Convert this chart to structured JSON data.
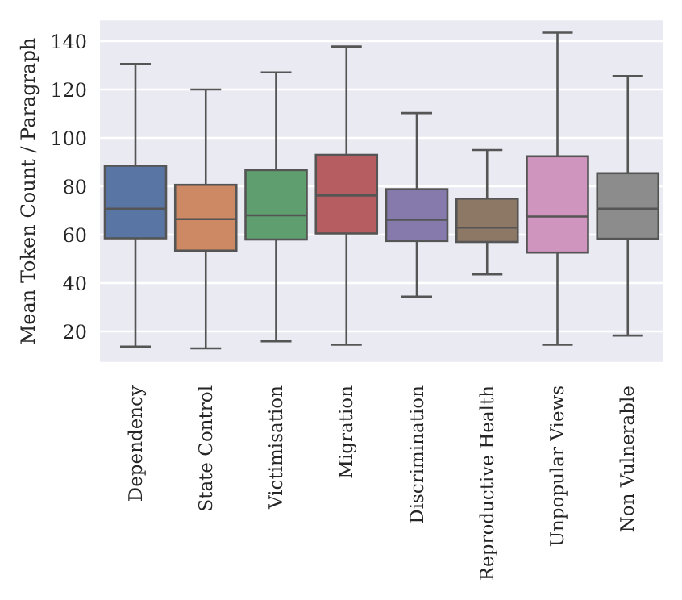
{
  "chart_data": {
    "type": "box",
    "ylabel": "Mean Token Count / Paragraph",
    "categories": [
      "Dependency",
      "State Control",
      "Victimisation",
      "Migration",
      "Discrimination",
      "Reproductive Health",
      "Unpopular Views",
      "Non Vulnerable"
    ],
    "colors": [
      "#5875a4",
      "#cc8963",
      "#5f9e6e",
      "#b55d60",
      "#857aab",
      "#8d7866",
      "#d095bf",
      "#8c8c8c"
    ],
    "boxes": [
      {
        "low": 13.7,
        "q1": 58.5,
        "median": 70.7,
        "q3": 88.5,
        "high": 130.6
      },
      {
        "low": 13,
        "q1": 53.4,
        "median": 66.4,
        "q3": 80.6,
        "high": 120
      },
      {
        "low": 15.9,
        "q1": 58,
        "median": 68,
        "q3": 86.7,
        "high": 127.1
      },
      {
        "low": 14.5,
        "q1": 60.5,
        "median": 76.2,
        "q3": 93,
        "high": 137.8
      },
      {
        "low": 34.4,
        "q1": 57.4,
        "median": 66.2,
        "q3": 78.8,
        "high": 110.3
      },
      {
        "low": 43.6,
        "q1": 57,
        "median": 62.9,
        "q3": 74.9,
        "high": 95
      },
      {
        "low": 14.5,
        "q1": 52.6,
        "median": 67.5,
        "q3": 92.4,
        "high": 143.5
      },
      {
        "low": 18.3,
        "q1": 58.3,
        "median": 70.7,
        "q3": 85.4,
        "high": 125.6
      }
    ],
    "ylim": [
      7,
      149
    ],
    "yticks": [
      20,
      40,
      60,
      80,
      100,
      120,
      140
    ],
    "grid": "y"
  }
}
